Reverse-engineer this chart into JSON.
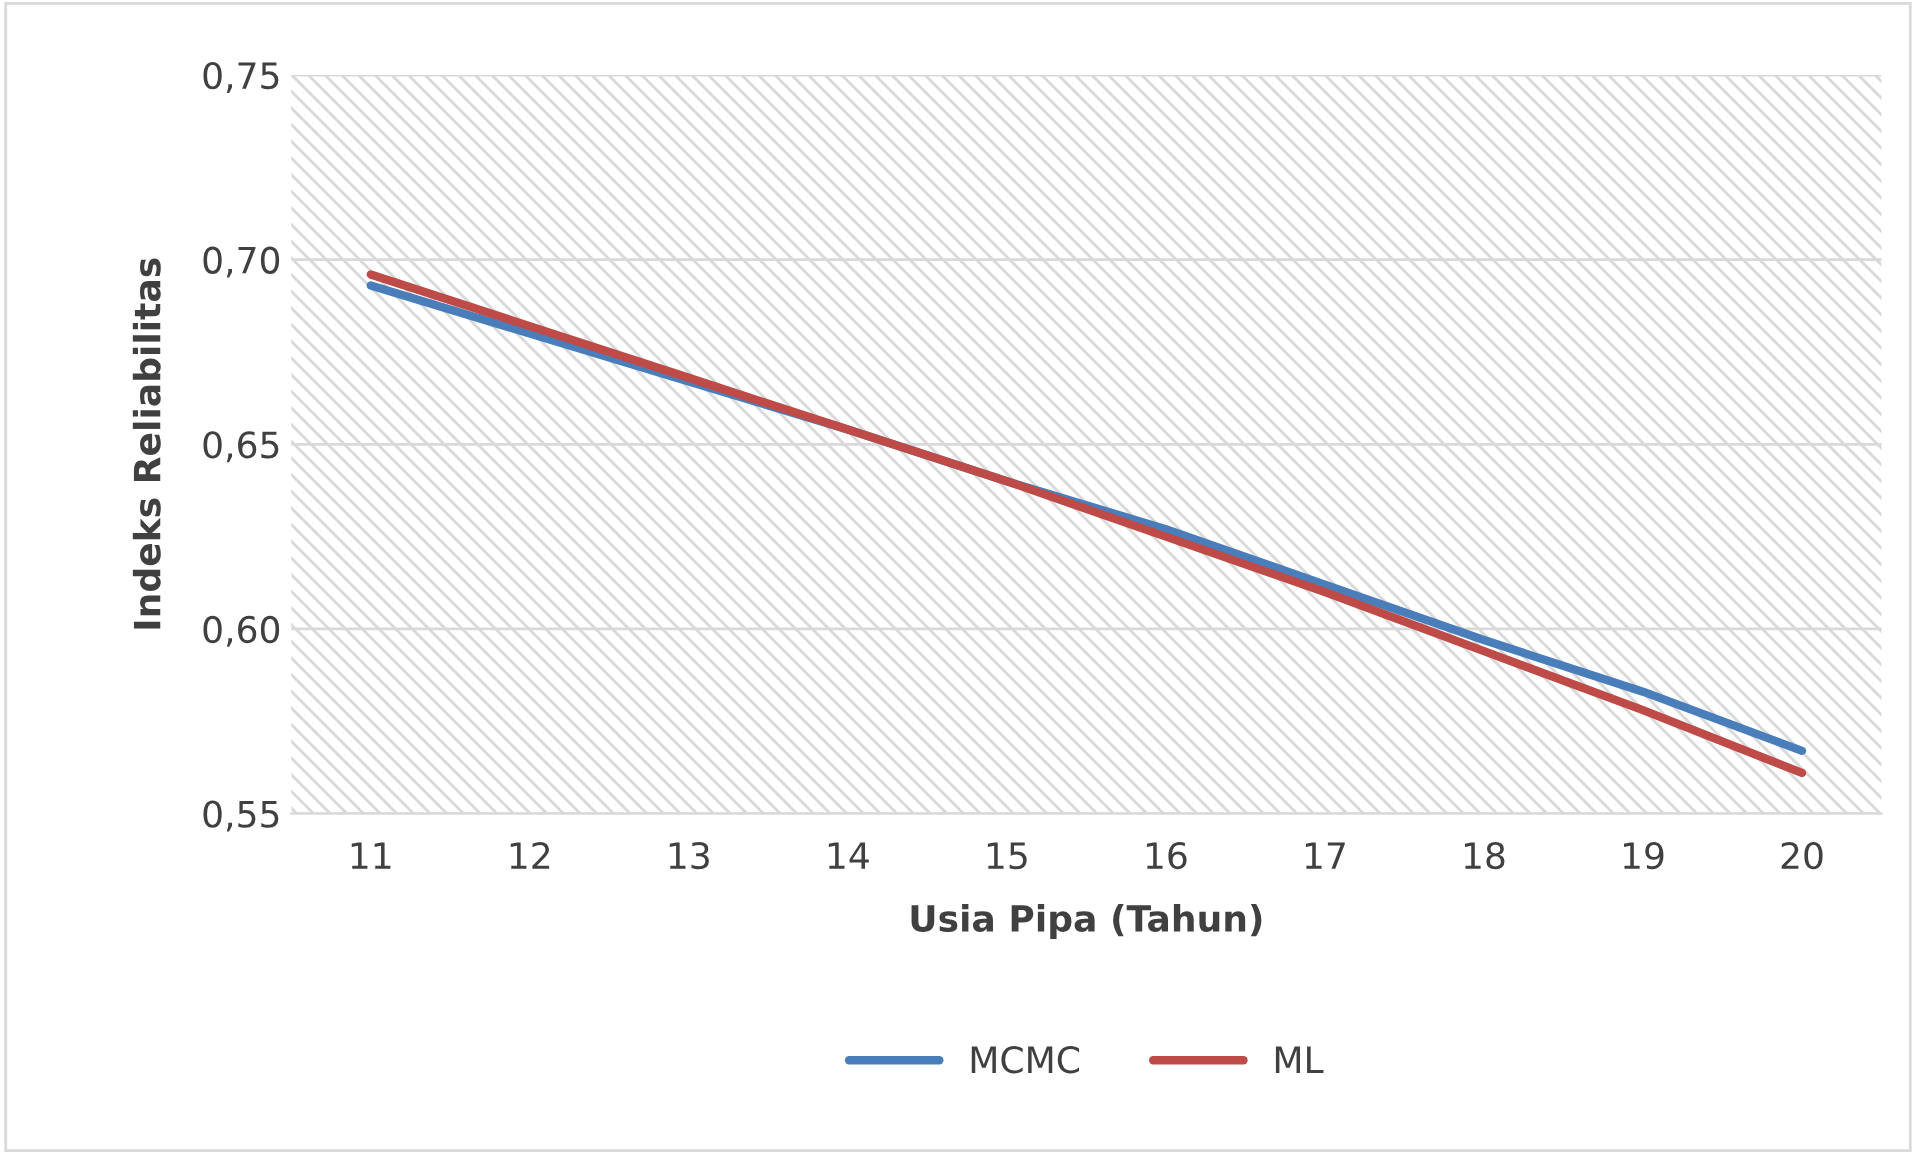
{
  "chart_data": {
    "type": "line",
    "xlabel": "Usia Pipa (Tahun)",
    "ylabel": "Indeks Reliabilitas",
    "categories": [
      "11",
      "12",
      "13",
      "14",
      "15",
      "16",
      "17",
      "18",
      "19",
      "20"
    ],
    "series": [
      {
        "name": "MCMC",
        "color": "#4a7ebb",
        "values": [
          0.693,
          0.68,
          0.667,
          0.654,
          0.64,
          0.627,
          0.612,
          0.597,
          0.583,
          0.567
        ]
      },
      {
        "name": "ML",
        "color": "#be4b48",
        "values": [
          0.696,
          0.682,
          0.668,
          0.654,
          0.64,
          0.625,
          0.61,
          0.594,
          0.578,
          0.561
        ]
      }
    ],
    "ylim": [
      0.55,
      0.75
    ],
    "yticks": [
      {
        "value": 0.55,
        "label": "0,55"
      },
      {
        "value": 0.6,
        "label": "0,60"
      },
      {
        "value": 0.65,
        "label": "0,65"
      },
      {
        "value": 0.7,
        "label": "0,70"
      },
      {
        "value": 0.75,
        "label": "0,75"
      }
    ],
    "grid": "y",
    "legend": "bottom",
    "marker": "none",
    "line_style": "solid"
  }
}
